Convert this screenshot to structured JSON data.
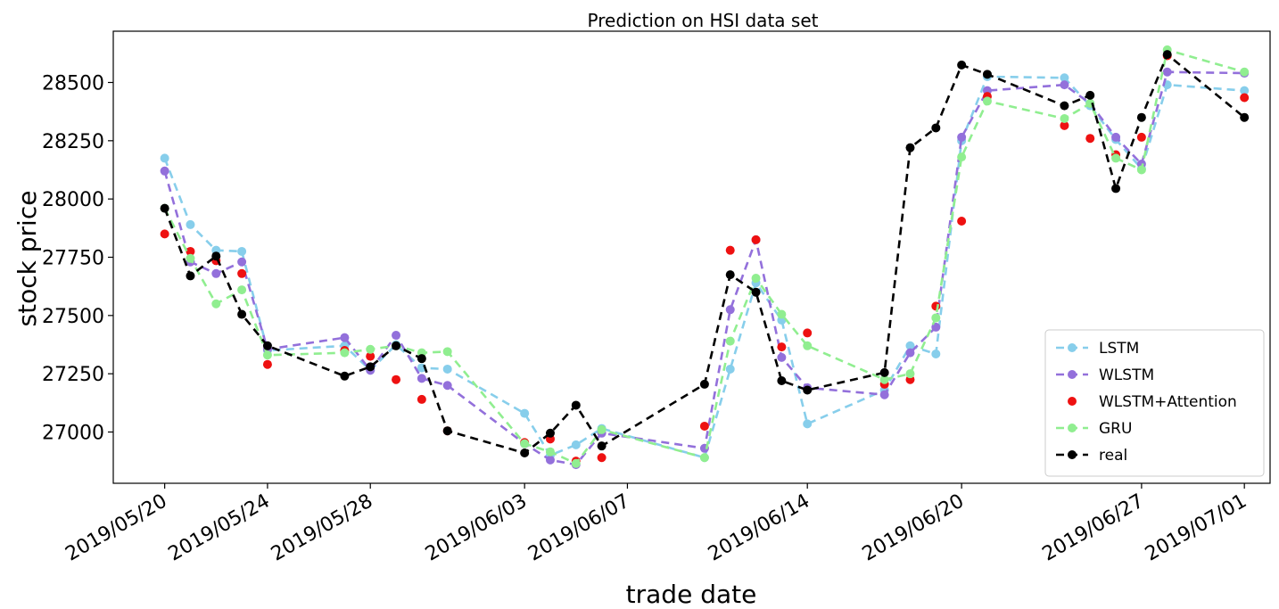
{
  "chart_data": {
    "type": "line",
    "title": "Prediction on HSI data set",
    "xlabel": "trade date",
    "ylabel": "stock price",
    "xlim": [
      "2019/05/18",
      "2019/07/02"
    ],
    "ylim": [
      26780,
      28720
    ],
    "grid": false,
    "legend_position": "bottom-right",
    "yticks": [
      27000,
      27250,
      27500,
      27750,
      28000,
      28250,
      28500
    ],
    "xticks": [
      "2019/05/20",
      "2019/05/24",
      "2019/05/28",
      "2019/06/03",
      "2019/06/07",
      "2019/06/14",
      "2019/06/20",
      "2019/06/27",
      "2019/07/01"
    ],
    "x": [
      "2019/05/20",
      "2019/05/21",
      "2019/05/22",
      "2019/05/23",
      "2019/05/24",
      "2019/05/27",
      "2019/05/28",
      "2019/05/29",
      "2019/05/30",
      "2019/05/31",
      "2019/06/03",
      "2019/06/04",
      "2019/06/05",
      "2019/06/06",
      "2019/06/10",
      "2019/06/11",
      "2019/06/12",
      "2019/06/13",
      "2019/06/14",
      "2019/06/17",
      "2019/06/18",
      "2019/06/19",
      "2019/06/20",
      "2019/06/21",
      "2019/06/24",
      "2019/06/25",
      "2019/06/26",
      "2019/06/27",
      "2019/06/28",
      "2019/07/01"
    ],
    "series": [
      {
        "name": "LSTM",
        "color": "#87ceeb",
        "style": "dashed",
        "marker": true,
        "values": [
          28175,
          27890,
          27780,
          27775,
          27350,
          27370,
          27265,
          27375,
          27275,
          27270,
          27080,
          26900,
          26945,
          27015,
          26890,
          27270,
          27640,
          27480,
          27035,
          27180,
          27370,
          27335,
          28250,
          28525,
          28520,
          28400,
          28255,
          28130,
          28490,
          28465
        ]
      },
      {
        "name": "WLSTM",
        "color": "#9370db",
        "style": "dashed",
        "marker": true,
        "values": [
          28120,
          27730,
          27680,
          27730,
          27355,
          27405,
          27265,
          27415,
          27230,
          27200,
          26950,
          26880,
          26860,
          26995,
          26930,
          27525,
          27825,
          27320,
          27190,
          27160,
          27340,
          27450,
          28265,
          28465,
          28490,
          28410,
          28265,
          28150,
          28545,
          28540
        ]
      },
      {
        "name": "WLSTM+Attention",
        "color": "#ee1111",
        "style": "none",
        "marker": true,
        "values": [
          27850,
          27775,
          27735,
          27680,
          27290,
          27350,
          27325,
          27225,
          27140,
          27005,
          26955,
          26970,
          26875,
          26890,
          27025,
          27780,
          27825,
          27365,
          27425,
          27205,
          27225,
          27540,
          27905,
          28440,
          28315,
          28260,
          28190,
          28265,
          28615,
          28435
        ]
      },
      {
        "name": "GRU",
        "color": "#90ee90",
        "style": "dashed",
        "marker": true,
        "values": [
          27960,
          27745,
          27550,
          27610,
          27330,
          27340,
          27355,
          27370,
          27340,
          27345,
          26950,
          26915,
          26865,
          27010,
          26890,
          27390,
          27660,
          27505,
          27370,
          27225,
          27250,
          27490,
          28180,
          28420,
          28345,
          28410,
          28175,
          28125,
          28640,
          28545
        ]
      },
      {
        "name": "real",
        "color": "#000000",
        "style": "dashed",
        "marker": true,
        "values": [
          27960,
          27670,
          27755,
          27505,
          27370,
          27240,
          27280,
          27370,
          27315,
          27005,
          26910,
          26995,
          27115,
          26940,
          27205,
          27675,
          27600,
          27220,
          27180,
          27255,
          28220,
          28305,
          28575,
          28535,
          28400,
          28445,
          28045,
          28350,
          28620,
          28350
        ]
      }
    ]
  }
}
